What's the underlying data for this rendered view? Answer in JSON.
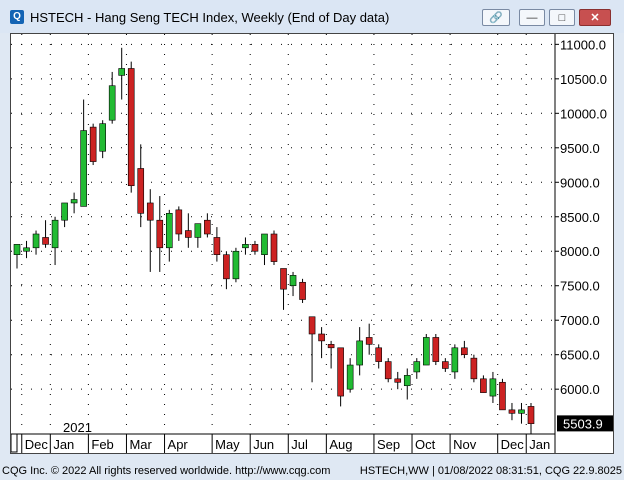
{
  "window": {
    "title": "HSTECH - Hang Seng TECH Index, Weekly (End of Day data)",
    "icon": "Q"
  },
  "footer": {
    "left": "CQG Inc. © 2022 All rights reserved worldwide. http://www.cqg.com",
    "right": "HSTECH,WW | 01/08/2022 08:31:51, CQG 22.9.8025"
  },
  "colors": {
    "up": "#22bb33",
    "down": "#cc2222",
    "grid": "#000000",
    "last_price_bg": "#000000",
    "last_price_fg": "#ffffff"
  },
  "chart_data": {
    "type": "candlestick",
    "year_label": "2021",
    "x_tick_labels": [
      "Dec",
      "Jan",
      "Feb",
      "Mar",
      "Apr",
      "May",
      "Jun",
      "Jul",
      "Aug",
      "Sep",
      "Oct",
      "Nov",
      "Dec",
      "Jan"
    ],
    "y_tick_labels": [
      "11000.0",
      "10500.0",
      "10000.0",
      "9500.0",
      "9000.0",
      "8500.0",
      "8000.0",
      "7500.0",
      "7000.0",
      "6500.0",
      "6000.0"
    ],
    "ylim": [
      5350,
      11150
    ],
    "last_price": "5503.9",
    "last_price_value": 5503.9,
    "grid": "dotted",
    "candles": [
      {
        "o": 7950,
        "h": 8100,
        "l": 7750,
        "c": 8100
      },
      {
        "o": 8000,
        "h": 8150,
        "l": 7900,
        "c": 8050
      },
      {
        "o": 8050,
        "h": 8300,
        "l": 7950,
        "c": 8250
      },
      {
        "o": 8200,
        "h": 8450,
        "l": 8050,
        "c": 8100
      },
      {
        "o": 8050,
        "h": 8500,
        "l": 7800,
        "c": 8450
      },
      {
        "o": 8450,
        "h": 8700,
        "l": 8350,
        "c": 8700
      },
      {
        "o": 8700,
        "h": 8850,
        "l": 8550,
        "c": 8750
      },
      {
        "o": 8650,
        "h": 10200,
        "l": 8650,
        "c": 9750
      },
      {
        "o": 9800,
        "h": 9850,
        "l": 9250,
        "c": 9300
      },
      {
        "o": 9450,
        "h": 9900,
        "l": 9350,
        "c": 9850
      },
      {
        "o": 9900,
        "h": 10600,
        "l": 9850,
        "c": 10400
      },
      {
        "o": 10550,
        "h": 10950,
        "l": 10200,
        "c": 10650
      },
      {
        "o": 10650,
        "h": 10750,
        "l": 8850,
        "c": 8950
      },
      {
        "o": 9200,
        "h": 9550,
        "l": 8350,
        "c": 8550
      },
      {
        "o": 8700,
        "h": 8900,
        "l": 7700,
        "c": 8450
      },
      {
        "o": 8450,
        "h": 8800,
        "l": 7700,
        "c": 8050
      },
      {
        "o": 8050,
        "h": 8600,
        "l": 7850,
        "c": 8550
      },
      {
        "o": 8600,
        "h": 8650,
        "l": 8150,
        "c": 8250
      },
      {
        "o": 8300,
        "h": 8550,
        "l": 8050,
        "c": 8200
      },
      {
        "o": 8200,
        "h": 8400,
        "l": 8050,
        "c": 8400
      },
      {
        "o": 8450,
        "h": 8550,
        "l": 8200,
        "c": 8250
      },
      {
        "o": 8200,
        "h": 8350,
        "l": 7850,
        "c": 7950
      },
      {
        "o": 7950,
        "h": 8000,
        "l": 7450,
        "c": 7600
      },
      {
        "o": 7600,
        "h": 8050,
        "l": 7550,
        "c": 8000
      },
      {
        "o": 8050,
        "h": 8200,
        "l": 7950,
        "c": 8100
      },
      {
        "o": 8100,
        "h": 8150,
        "l": 7950,
        "c": 8000
      },
      {
        "o": 7950,
        "h": 8250,
        "l": 7800,
        "c": 8250
      },
      {
        "o": 8250,
        "h": 8300,
        "l": 7800,
        "c": 7850
      },
      {
        "o": 7750,
        "h": 7750,
        "l": 7150,
        "c": 7450
      },
      {
        "o": 7500,
        "h": 7700,
        "l": 7350,
        "c": 7650
      },
      {
        "o": 7550,
        "h": 7600,
        "l": 7250,
        "c": 7300
      },
      {
        "o": 7050,
        "h": 7050,
        "l": 6100,
        "c": 6800
      },
      {
        "o": 6800,
        "h": 6900,
        "l": 6450,
        "c": 6700
      },
      {
        "o": 6650,
        "h": 6700,
        "l": 6300,
        "c": 6600
      },
      {
        "o": 6600,
        "h": 6600,
        "l": 5750,
        "c": 5900
      },
      {
        "o": 6000,
        "h": 6450,
        "l": 5950,
        "c": 6350
      },
      {
        "o": 6350,
        "h": 6900,
        "l": 6200,
        "c": 6700
      },
      {
        "o": 6750,
        "h": 6950,
        "l": 6500,
        "c": 6650
      },
      {
        "o": 6600,
        "h": 6650,
        "l": 6300,
        "c": 6400
      },
      {
        "o": 6400,
        "h": 6450,
        "l": 6100,
        "c": 6150
      },
      {
        "o": 6150,
        "h": 6250,
        "l": 6000,
        "c": 6100
      },
      {
        "o": 6050,
        "h": 6300,
        "l": 5850,
        "c": 6200
      },
      {
        "o": 6250,
        "h": 6450,
        "l": 6150,
        "c": 6400
      },
      {
        "o": 6350,
        "h": 6800,
        "l": 6350,
        "c": 6750
      },
      {
        "o": 6750,
        "h": 6800,
        "l": 6350,
        "c": 6400
      },
      {
        "o": 6400,
        "h": 6450,
        "l": 6250,
        "c": 6300
      },
      {
        "o": 6250,
        "h": 6650,
        "l": 6150,
        "c": 6600
      },
      {
        "o": 6600,
        "h": 6700,
        "l": 6450,
        "c": 6500
      },
      {
        "o": 6450,
        "h": 6500,
        "l": 6100,
        "c": 6150
      },
      {
        "o": 6150,
        "h": 6200,
        "l": 5950,
        "c": 5950
      },
      {
        "o": 5900,
        "h": 6250,
        "l": 5800,
        "c": 6150
      },
      {
        "o": 6100,
        "h": 6150,
        "l": 5700,
        "c": 5700
      },
      {
        "o": 5700,
        "h": 5800,
        "l": 5550,
        "c": 5650
      },
      {
        "o": 5650,
        "h": 5800,
        "l": 5500,
        "c": 5700
      },
      {
        "o": 5750,
        "h": 5800,
        "l": 5350,
        "c": 5500
      }
    ]
  }
}
